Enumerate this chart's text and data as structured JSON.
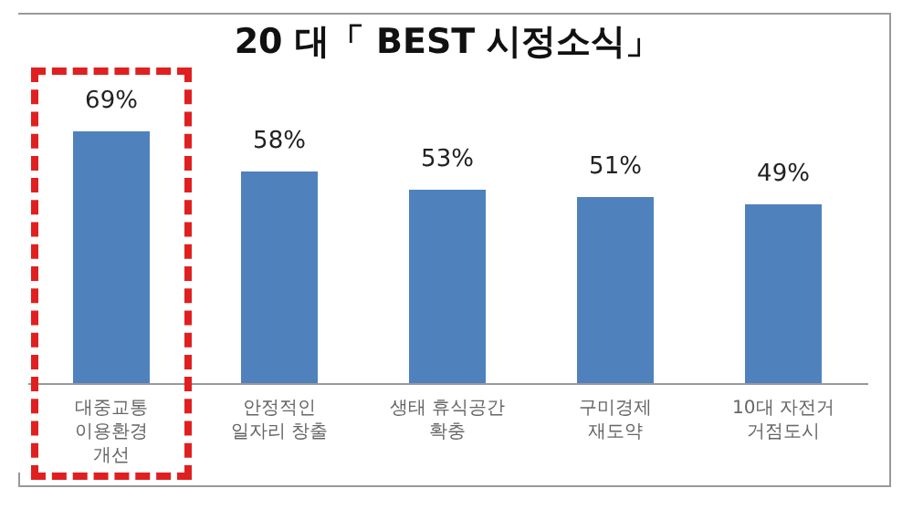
{
  "chart_data": {
    "type": "bar",
    "title": "20 대「 BEST 시정소식」",
    "categories": [
      "대중교통\n이용환경\n개선",
      "안정적인\n일자리 창출",
      "생태 휴식공간\n확충",
      "구미경제\n재도약",
      "10대 자전거\n거점도시"
    ],
    "values": [
      69,
      58,
      53,
      51,
      49
    ],
    "value_labels": [
      "69%",
      "58%",
      "53%",
      "51%",
      "49%"
    ],
    "color": "#4f81bd"
  }
}
